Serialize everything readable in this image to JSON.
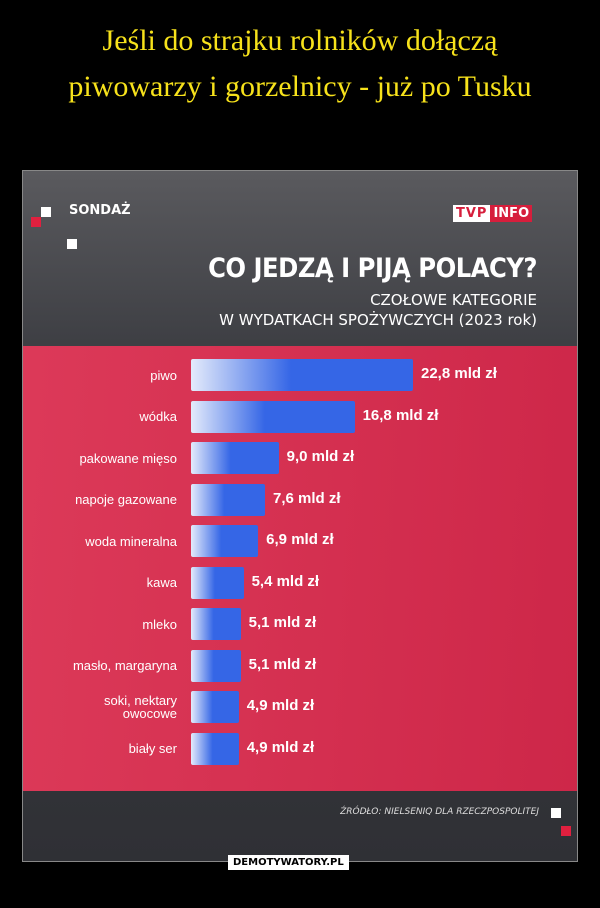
{
  "header": {
    "title": "Jeśli do strajku rolników dołączą piwowarzy i gorzelnicy - już po Tusku"
  },
  "badge": "SONDAŻ",
  "logo": {
    "main": "TVP",
    "sub": "INFO"
  },
  "chart_data": {
    "type": "bar",
    "orientation": "horizontal",
    "title": "CO JEDZĄ I PIJĄ POLACY?",
    "subtitle": [
      "CZOŁOWE KATEGORIE",
      "W WYDATKACH SPOŻYWCZYCH (2023 rok)"
    ],
    "categories": [
      "piwo",
      "wódka",
      "pakowane mięso",
      "napoje gazowane",
      "woda mineralna",
      "kawa",
      "mleko",
      "masło, margaryna",
      "soki, nektary owocowe",
      "biały ser"
    ],
    "values": [
      22.8,
      16.8,
      9.0,
      7.6,
      6.9,
      5.4,
      5.1,
      5.1,
      4.9,
      4.9
    ],
    "value_labels": [
      "22,8 mld zł",
      "16,8 mld zł",
      "9,0 mld zł",
      "7,6 mld zł",
      "6,9 mld zł",
      "5,4 mld zł",
      "5,1 mld zł",
      "5,1 mld zł",
      "4,9 mld zł",
      "4,9 mld zł"
    ],
    "color": "#3566e6",
    "source": "ŹRÓDŁO: NIELSENIQ DLA RZECZPOSPOLITEJ"
  },
  "watermark": "DEMOTYWATORY.PL"
}
